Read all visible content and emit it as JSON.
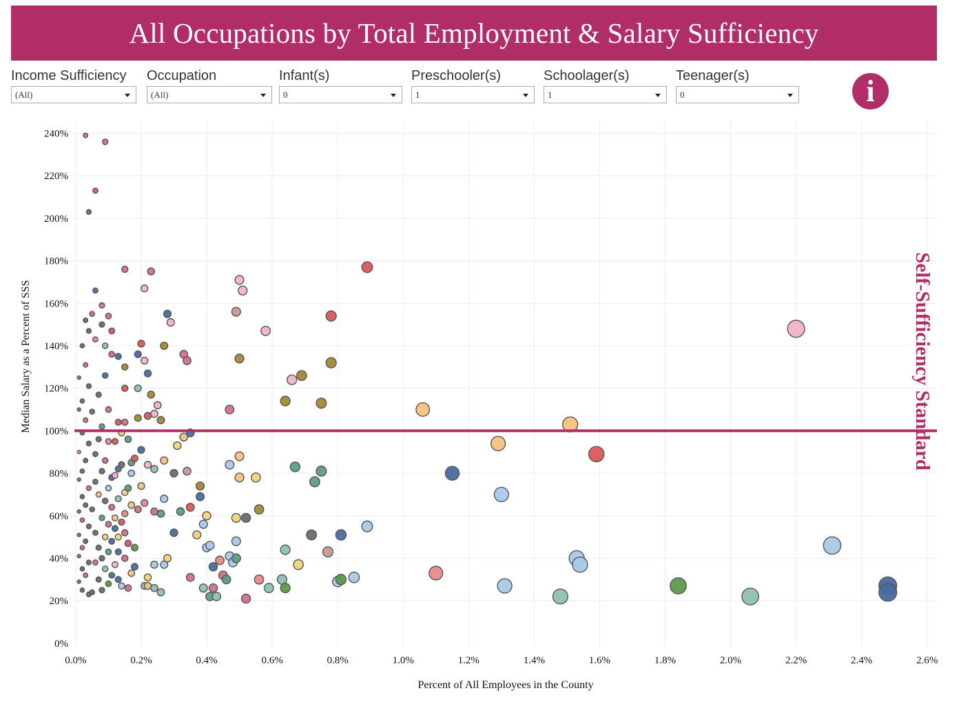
{
  "title": "All Occupations by Total Employment & Salary Sufficiency",
  "filters": [
    {
      "label": "Income Sufficiency",
      "value": "(All)"
    },
    {
      "label": "Occupation",
      "value": "(All)"
    },
    {
      "label": "Infant(s)",
      "value": "0"
    },
    {
      "label": "Preschooler(s)",
      "value": "1"
    },
    {
      "label": "Schoolager(s)",
      "value": "1"
    },
    {
      "label": "Teenager(s)",
      "value": "0"
    }
  ],
  "info_icon": "info-icon",
  "colors": {
    "brand": "#b02d68",
    "palette": [
      "#f2b2c8",
      "#d9595a",
      "#4a6aa0",
      "#a9c9e8",
      "#f6c27e",
      "#5d9c89",
      "#a48932",
      "#6e6a6a",
      "#c89a93",
      "#5b9a4b",
      "#90bfb5",
      "#d07088",
      "#f2d47a",
      "#e58a8a"
    ]
  },
  "chart_data": {
    "type": "scatter",
    "title": "",
    "xlabel": "Percent of All Employees in the County",
    "ylabel": "Median Salary as a Percent of SSS",
    "xlim": [
      -0.004,
      2.63
    ],
    "ylim": [
      -2,
      246
    ],
    "x_ticks": [
      0.0,
      0.2,
      0.4,
      0.6,
      0.8,
      1.0,
      1.2,
      1.4,
      1.6,
      1.8,
      2.0,
      2.2,
      2.4,
      2.6
    ],
    "x_tick_labels": [
      "0.0%",
      "0.2%",
      "0.4%",
      "0.6%",
      "0.8%",
      "1.0%",
      "1.2%",
      "1.4%",
      "1.6%",
      "1.8%",
      "2.0%",
      "2.2%",
      "2.4%",
      "2.6%"
    ],
    "y_ticks": [
      0,
      20,
      40,
      60,
      80,
      100,
      120,
      140,
      160,
      180,
      200,
      220,
      240
    ],
    "y_tick_labels": [
      "0%",
      "20%",
      "40%",
      "60%",
      "80%",
      "100%",
      "120%",
      "140%",
      "160%",
      "180%",
      "200%",
      "220%",
      "240%"
    ],
    "reference_line": {
      "y": 100,
      "label": "Self-Sufficiency Standard"
    },
    "size_rule": "marker area grows with x (employment share)",
    "points": [
      [
        0.89,
        177,
        1
      ],
      [
        2.2,
        148,
        0
      ],
      [
        0.78,
        154,
        1
      ],
      [
        0.78,
        132,
        6
      ],
      [
        0.69,
        126,
        6
      ],
      [
        0.66,
        124,
        0
      ],
      [
        0.64,
        114,
        6
      ],
      [
        0.75,
        113,
        6
      ],
      [
        1.06,
        110,
        4
      ],
      [
        1.51,
        103,
        4
      ],
      [
        1.29,
        94,
        4
      ],
      [
        1.59,
        89,
        1
      ],
      [
        1.15,
        80,
        2
      ],
      [
        1.3,
        70,
        3
      ],
      [
        0.89,
        55,
        3
      ],
      [
        0.81,
        51,
        2
      ],
      [
        0.72,
        51,
        7
      ],
      [
        0.77,
        43,
        8
      ],
      [
        2.31,
        46,
        3
      ],
      [
        1.53,
        40,
        3
      ],
      [
        1.54,
        37,
        3
      ],
      [
        1.1,
        33,
        13
      ],
      [
        0.85,
        31,
        3
      ],
      [
        0.81,
        30,
        9
      ],
      [
        0.8,
        29,
        3
      ],
      [
        1.31,
        27,
        3
      ],
      [
        1.84,
        27,
        9
      ],
      [
        2.48,
        27,
        2
      ],
      [
        2.48,
        24,
        2
      ],
      [
        2.06,
        22,
        10
      ],
      [
        1.48,
        22,
        10
      ],
      [
        0.68,
        37,
        12
      ],
      [
        0.64,
        44,
        10
      ],
      [
        0.63,
        30,
        10
      ],
      [
        0.64,
        26,
        9
      ],
      [
        0.59,
        26,
        10
      ],
      [
        0.56,
        30,
        13
      ],
      [
        0.67,
        83,
        5
      ],
      [
        0.75,
        81,
        5
      ],
      [
        0.73,
        76,
        5
      ],
      [
        0.5,
        171,
        0
      ],
      [
        0.51,
        166,
        0
      ],
      [
        0.49,
        156,
        8
      ],
      [
        0.58,
        147,
        0
      ],
      [
        0.5,
        134,
        6
      ],
      [
        0.47,
        110,
        11
      ],
      [
        0.5,
        88,
        4
      ],
      [
        0.47,
        84,
        3
      ],
      [
        0.5,
        78,
        4
      ],
      [
        0.55,
        78,
        12
      ],
      [
        0.56,
        63,
        6
      ],
      [
        0.52,
        59,
        7
      ],
      [
        0.49,
        59,
        12
      ],
      [
        0.49,
        48,
        3
      ],
      [
        0.49,
        40,
        5
      ],
      [
        0.47,
        41,
        3
      ],
      [
        0.48,
        38,
        3
      ],
      [
        0.42,
        36,
        2
      ],
      [
        0.41,
        46,
        3
      ],
      [
        0.4,
        45,
        3
      ],
      [
        0.45,
        32,
        11
      ],
      [
        0.46,
        30,
        5
      ],
      [
        0.44,
        39,
        13
      ],
      [
        0.42,
        26,
        11
      ],
      [
        0.39,
        26,
        10
      ],
      [
        0.41,
        22,
        5
      ],
      [
        0.43,
        22,
        10
      ],
      [
        0.52,
        21,
        11
      ],
      [
        0.4,
        60,
        12
      ],
      [
        0.39,
        56,
        3
      ],
      [
        0.37,
        51,
        12
      ],
      [
        0.38,
        74,
        6
      ],
      [
        0.38,
        69,
        2
      ],
      [
        0.34,
        81,
        8
      ],
      [
        0.35,
        99,
        2
      ],
      [
        0.33,
        97,
        4
      ],
      [
        0.31,
        93,
        12
      ],
      [
        0.3,
        80,
        7
      ],
      [
        0.34,
        133,
        11
      ],
      [
        0.33,
        136,
        11
      ],
      [
        0.28,
        155,
        2
      ],
      [
        0.29,
        151,
        0
      ],
      [
        0.23,
        175,
        11
      ],
      [
        0.21,
        167,
        0
      ],
      [
        0.27,
        140,
        6
      ],
      [
        0.35,
        64,
        1
      ],
      [
        0.32,
        62,
        5
      ],
      [
        0.3,
        52,
        2
      ],
      [
        0.35,
        31,
        11
      ],
      [
        0.22,
        127,
        2
      ],
      [
        0.21,
        133,
        0
      ],
      [
        0.19,
        136,
        2
      ],
      [
        0.23,
        117,
        6
      ],
      [
        0.25,
        112,
        0
      ],
      [
        0.24,
        108,
        0
      ],
      [
        0.22,
        107,
        1
      ],
      [
        0.19,
        106,
        6
      ],
      [
        0.26,
        105,
        6
      ],
      [
        0.2,
        91,
        2
      ],
      [
        0.27,
        86,
        4
      ],
      [
        0.22,
        84,
        0
      ],
      [
        0.24,
        82,
        10
      ],
      [
        0.17,
        85,
        5
      ],
      [
        0.2,
        74,
        4
      ],
      [
        0.27,
        68,
        3
      ],
      [
        0.21,
        66,
        13
      ],
      [
        0.24,
        62,
        11
      ],
      [
        0.26,
        61,
        5
      ],
      [
        0.28,
        40,
        12
      ],
      [
        0.27,
        37,
        3
      ],
      [
        0.24,
        37,
        3
      ],
      [
        0.22,
        31,
        12
      ],
      [
        0.21,
        27,
        10
      ],
      [
        0.22,
        27,
        4
      ],
      [
        0.24,
        26,
        10
      ],
      [
        0.26,
        24,
        10
      ],
      [
        0.15,
        176,
        11
      ],
      [
        0.2,
        141,
        1
      ],
      [
        0.15,
        130,
        6
      ],
      [
        0.13,
        135,
        2
      ],
      [
        0.15,
        120,
        1
      ],
      [
        0.19,
        120,
        10
      ],
      [
        0.13,
        104,
        1
      ],
      [
        0.15,
        104,
        11
      ],
      [
        0.16,
        96,
        5
      ],
      [
        0.14,
        99,
        4
      ],
      [
        0.12,
        95,
        1
      ],
      [
        0.18,
        87,
        1
      ],
      [
        0.14,
        84,
        7
      ],
      [
        0.13,
        82,
        2
      ],
      [
        0.12,
        79,
        0
      ],
      [
        0.17,
        80,
        3
      ],
      [
        0.16,
        73,
        5
      ],
      [
        0.15,
        71,
        12
      ],
      [
        0.13,
        68,
        10
      ],
      [
        0.17,
        65,
        4
      ],
      [
        0.19,
        63,
        11
      ],
      [
        0.15,
        61,
        13
      ],
      [
        0.12,
        59,
        4
      ],
      [
        0.14,
        57,
        1
      ],
      [
        0.12,
        54,
        2
      ],
      [
        0.15,
        52,
        11
      ],
      [
        0.13,
        50,
        12
      ],
      [
        0.16,
        47,
        1
      ],
      [
        0.18,
        45,
        9
      ],
      [
        0.13,
        43,
        2
      ],
      [
        0.15,
        40,
        11
      ],
      [
        0.12,
        37,
        0
      ],
      [
        0.17,
        33,
        4
      ],
      [
        0.13,
        30,
        2
      ],
      [
        0.16,
        26,
        11
      ],
      [
        0.18,
        36,
        2
      ],
      [
        0.14,
        27,
        3
      ],
      [
        0.09,
        236,
        11
      ],
      [
        0.06,
        213,
        1
      ],
      [
        0.04,
        203,
        7
      ],
      [
        0.03,
        239,
        11
      ],
      [
        0.06,
        166,
        2
      ],
      [
        0.08,
        159,
        11
      ],
      [
        0.1,
        154,
        11
      ],
      [
        0.08,
        150,
        7
      ],
      [
        0.11,
        147,
        1
      ],
      [
        0.09,
        140,
        10
      ],
      [
        0.06,
        143,
        13
      ],
      [
        0.05,
        155,
        11
      ],
      [
        0.03,
        152,
        7
      ],
      [
        0.04,
        147,
        7
      ],
      [
        0.11,
        136,
        11
      ],
      [
        0.09,
        126,
        2
      ],
      [
        0.07,
        117,
        7
      ],
      [
        0.1,
        110,
        11
      ],
      [
        0.05,
        109,
        7
      ],
      [
        0.08,
        102,
        5
      ],
      [
        0.07,
        96,
        7
      ],
      [
        0.1,
        95,
        13
      ],
      [
        0.06,
        89,
        7
      ],
      [
        0.09,
        86,
        11
      ],
      [
        0.08,
        81,
        7
      ],
      [
        0.11,
        78,
        2
      ],
      [
        0.06,
        76,
        7
      ],
      [
        0.1,
        73,
        3
      ],
      [
        0.07,
        70,
        4
      ],
      [
        0.09,
        67,
        7
      ],
      [
        0.11,
        64,
        11
      ],
      [
        0.05,
        63,
        7
      ],
      [
        0.08,
        59,
        5
      ],
      [
        0.1,
        56,
        11
      ],
      [
        0.06,
        52,
        7
      ],
      [
        0.09,
        50,
        12
      ],
      [
        0.11,
        48,
        2
      ],
      [
        0.07,
        45,
        7
      ],
      [
        0.1,
        43,
        5
      ],
      [
        0.08,
        40,
        7
      ],
      [
        0.06,
        38,
        11
      ],
      [
        0.09,
        35,
        10
      ],
      [
        0.11,
        32,
        2
      ],
      [
        0.07,
        30,
        7
      ],
      [
        0.1,
        28,
        9
      ],
      [
        0.08,
        25,
        7
      ],
      [
        0.05,
        24,
        7
      ],
      [
        0.02,
        140,
        7
      ],
      [
        0.03,
        131,
        11
      ],
      [
        0.01,
        125,
        7
      ],
      [
        0.04,
        121,
        7
      ],
      [
        0.02,
        114,
        7
      ],
      [
        0.01,
        110,
        7
      ],
      [
        0.03,
        105,
        11
      ],
      [
        0.02,
        99,
        7
      ],
      [
        0.04,
        94,
        7
      ],
      [
        0.01,
        90,
        11
      ],
      [
        0.03,
        86,
        7
      ],
      [
        0.02,
        81,
        7
      ],
      [
        0.01,
        77,
        7
      ],
      [
        0.04,
        73,
        11
      ],
      [
        0.02,
        69,
        7
      ],
      [
        0.03,
        65,
        7
      ],
      [
        0.01,
        62,
        7
      ],
      [
        0.02,
        58,
        11
      ],
      [
        0.04,
        55,
        7
      ],
      [
        0.01,
        51,
        7
      ],
      [
        0.03,
        48,
        7
      ],
      [
        0.02,
        45,
        11
      ],
      [
        0.01,
        41,
        7
      ],
      [
        0.04,
        38,
        7
      ],
      [
        0.02,
        35,
        7
      ],
      [
        0.03,
        32,
        11
      ],
      [
        0.01,
        29,
        7
      ],
      [
        0.02,
        25,
        7
      ],
      [
        0.04,
        23,
        7
      ]
    ]
  }
}
